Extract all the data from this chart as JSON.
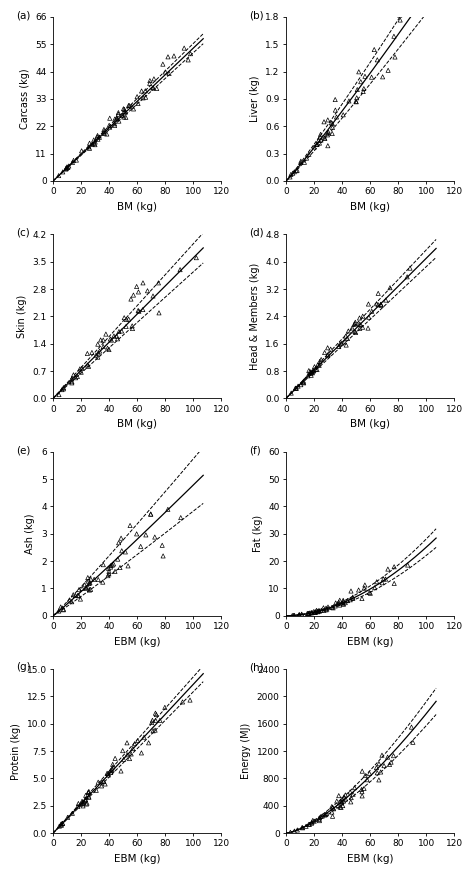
{
  "panels": [
    {
      "label": "(a)",
      "xlabel": "BM (kg)",
      "ylabel": "Carcass (kg)",
      "xlim": [
        0,
        120
      ],
      "ylim": [
        0,
        66
      ],
      "yticks": [
        0,
        11,
        22,
        33,
        44,
        55,
        66
      ],
      "xticks": [
        0,
        20,
        40,
        60,
        80,
        100,
        120
      ],
      "a": 0.535,
      "b": 1.0,
      "ci_factor": 0.035,
      "n": 70,
      "noise": 0.06,
      "seed": 1
    },
    {
      "label": "(b)",
      "xlabel": "BM (kg)",
      "ylabel": "Liver (kg)",
      "xlim": [
        0,
        120
      ],
      "ylim": [
        0,
        1.8
      ],
      "yticks": [
        0,
        0.3,
        0.6,
        0.9,
        1.2,
        1.5,
        1.8
      ],
      "xticks": [
        0,
        20,
        40,
        60,
        80,
        100,
        120
      ],
      "a": 0.0148,
      "b": 1.07,
      "ci_factor": 0.1,
      "n": 55,
      "noise": 0.12,
      "seed": 2
    },
    {
      "label": "(c)",
      "xlabel": "BM (kg)",
      "ylabel": "Skin (kg)",
      "xlim": [
        0,
        120
      ],
      "ylim": [
        0,
        4.2
      ],
      "yticks": [
        0,
        0.7,
        1.4,
        2.1,
        2.8,
        3.5,
        4.2
      ],
      "xticks": [
        0,
        20,
        40,
        60,
        80,
        100,
        120
      ],
      "a": 0.036,
      "b": 1.0,
      "ci_factor": 0.1,
      "n": 55,
      "noise": 0.13,
      "seed": 3
    },
    {
      "label": "(d)",
      "xlabel": "BM (kg)",
      "ylabel": "Head & Members (kg)",
      "xlim": [
        0,
        120
      ],
      "ylim": [
        0,
        4.8
      ],
      "yticks": [
        0,
        0.8,
        1.6,
        2.4,
        3.2,
        4.0,
        4.8
      ],
      "xticks": [
        0,
        20,
        40,
        60,
        80,
        100,
        120
      ],
      "a": 0.041,
      "b": 1.0,
      "ci_factor": 0.06,
      "n": 65,
      "noise": 0.07,
      "seed": 4
    },
    {
      "label": "(e)",
      "xlabel": "EBM (kg)",
      "ylabel": "Ash (kg)",
      "xlim": [
        0,
        120
      ],
      "ylim": [
        0,
        6
      ],
      "yticks": [
        0,
        1,
        2,
        3,
        4,
        5,
        6
      ],
      "xticks": [
        0,
        20,
        40,
        60,
        80,
        100,
        120
      ],
      "a": 0.038,
      "b": 1.05,
      "ci_factor": 0.2,
      "n": 55,
      "noise": 0.18,
      "seed": 5
    },
    {
      "label": "(f)",
      "xlabel": "EBM (kg)",
      "ylabel": "Fat (kg)",
      "xlim": [
        0,
        120
      ],
      "ylim": [
        0,
        60
      ],
      "yticks": [
        0,
        10,
        20,
        30,
        40,
        50,
        60
      ],
      "xticks": [
        0,
        20,
        40,
        60,
        80,
        100,
        120
      ],
      "a": 0.005,
      "b": 1.85,
      "ci_factor": 0.12,
      "n": 65,
      "noise": 0.15,
      "seed": 6
    },
    {
      "label": "(g)",
      "xlabel": "EBM (kg)",
      "ylabel": "Protein (kg)",
      "xlim": [
        0,
        120
      ],
      "ylim": [
        0,
        15.0
      ],
      "yticks": [
        0.0,
        2.5,
        5.0,
        7.5,
        10.0,
        12.5,
        15.0
      ],
      "xticks": [
        0,
        20,
        40,
        60,
        80,
        100,
        120
      ],
      "a": 0.13,
      "b": 1.01,
      "ci_factor": 0.05,
      "n": 65,
      "noise": 0.08,
      "seed": 7
    },
    {
      "label": "(h)",
      "xlabel": "EBM (kg)",
      "ylabel": "Energy (MJ)",
      "xlim": [
        0,
        120
      ],
      "ylim": [
        0,
        2400
      ],
      "yticks": [
        0,
        400,
        800,
        1200,
        1600,
        2000,
        2400
      ],
      "xticks": [
        0,
        20,
        40,
        60,
        80,
        100,
        120
      ],
      "a": 2.2,
      "b": 1.45,
      "ci_factor": 0.1,
      "n": 65,
      "noise": 0.13,
      "seed": 8
    }
  ],
  "scatter_color": "black",
  "line_color": "black",
  "ci_color": "black",
  "marker": "^",
  "marker_size": 9,
  "marker_facecolor": "none",
  "marker_edgewidth": 0.5,
  "label_fontsize": 7.5,
  "tick_fontsize": 6.5,
  "xlabel_fontsize": 7.5,
  "ylabel_fontsize": 7.0
}
